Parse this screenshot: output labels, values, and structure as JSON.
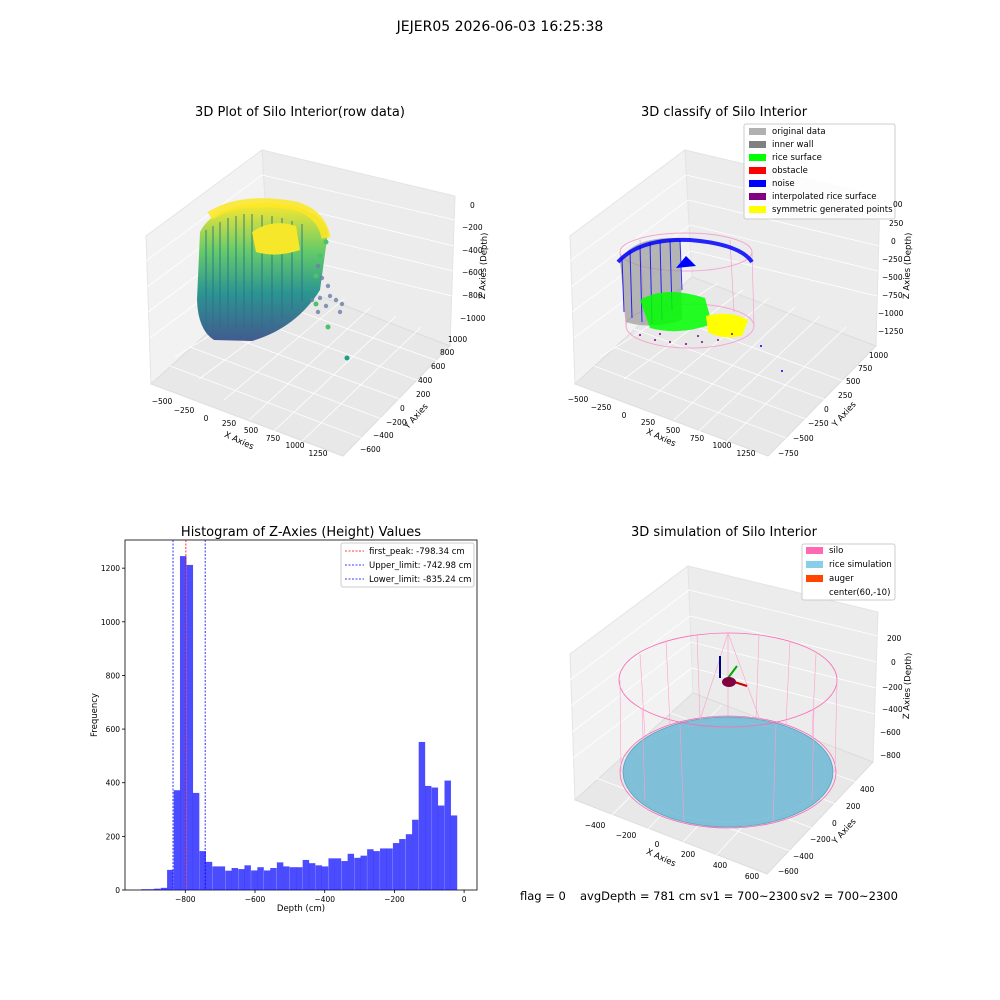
{
  "figure": {
    "suptitle": "JEJER05 2026-06-03 16:25:38",
    "footer": {
      "flag": "flag = 0",
      "avg": "avgDepth = 781 cm",
      "sv1": "sv1 = 700~2300",
      "sv2": "sv2 = 700~2300"
    }
  },
  "chart_data": [
    {
      "type": "scatter",
      "subtype": "3d",
      "title": "3D Plot of Silo Interior(row data)",
      "xlabel": "X Axies",
      "ylabel": "Y Axies",
      "zlabel": "Z Axies (Depth)",
      "x_ticks": [
        "−500",
        "−250",
        "0",
        "250",
        "500",
        "750",
        "1000",
        "1250"
      ],
      "y_ticks": [
        "−600",
        "−400",
        "−200",
        "0",
        "200",
        "400",
        "600",
        "800",
        "1000"
      ],
      "z_ticks": [
        "0",
        "−200",
        "−400",
        "−600",
        "−800",
        "−1000"
      ],
      "colormap": "viridis",
      "grid": true
    },
    {
      "type": "scatter",
      "subtype": "3d",
      "title": "3D classify of Silo Interior",
      "xlabel": "X Axies",
      "ylabel": "Y Axies",
      "zlabel": "Z Axies (Depth)",
      "x_ticks": [
        "−500",
        "−250",
        "0",
        "250",
        "500",
        "750",
        "1000",
        "1250"
      ],
      "y_ticks": [
        "−750",
        "−500",
        "−250",
        "0",
        "250",
        "500",
        "750",
        "1000"
      ],
      "z_ticks": [
        "250",
        "0",
        "−250",
        "−500",
        "−750",
        "−1000",
        "−1250"
      ],
      "z_tick_top": "00",
      "legend_position": "top-right",
      "legend": [
        {
          "label": "original data",
          "color": "#b0b0b0"
        },
        {
          "label": "inner wall",
          "color": "#808080"
        },
        {
          "label": "rice surface",
          "color": "#00ff00"
        },
        {
          "label": "obstacle",
          "color": "#ff0000"
        },
        {
          "label": "noise",
          "color": "#0000ff"
        },
        {
          "label": "interpolated rice surface",
          "color": "#800080"
        },
        {
          "label": "symmetric generated points",
          "color": "#ffff00"
        }
      ],
      "grid": true
    },
    {
      "type": "bar",
      "subtype": "histogram",
      "title": "Histogram of Z-Axies (Height) Values",
      "xlabel": "Depth (cm)",
      "ylabel": "Frequency",
      "x_ticks": [
        "−800",
        "−600",
        "−400",
        "−200",
        "0"
      ],
      "y_ticks": [
        "0",
        "200",
        "400",
        "600",
        "800",
        "1000",
        "1200"
      ],
      "xlim": [
        -973,
        37
      ],
      "ylim": [
        0,
        1305
      ],
      "bar_color": "#0000ff",
      "bin_width": 18.5,
      "bins": [
        {
          "x": -917,
          "count": 3
        },
        {
          "x": -898,
          "count": 3
        },
        {
          "x": -880,
          "count": 5
        },
        {
          "x": -861,
          "count": 8
        },
        {
          "x": -843,
          "count": 75
        },
        {
          "x": -824,
          "count": 372
        },
        {
          "x": -806,
          "count": 1245
        },
        {
          "x": -787,
          "count": 1212
        },
        {
          "x": -769,
          "count": 362
        },
        {
          "x": -750,
          "count": 145
        },
        {
          "x": -732,
          "count": 105
        },
        {
          "x": -713,
          "count": 88
        },
        {
          "x": -695,
          "count": 88
        },
        {
          "x": -676,
          "count": 72
        },
        {
          "x": -658,
          "count": 82
        },
        {
          "x": -639,
          "count": 78
        },
        {
          "x": -621,
          "count": 92
        },
        {
          "x": -602,
          "count": 73
        },
        {
          "x": -584,
          "count": 85
        },
        {
          "x": -565,
          "count": 73
        },
        {
          "x": -547,
          "count": 82
        },
        {
          "x": -528,
          "count": 103
        },
        {
          "x": -510,
          "count": 88
        },
        {
          "x": -491,
          "count": 85
        },
        {
          "x": -473,
          "count": 85
        },
        {
          "x": -454,
          "count": 112
        },
        {
          "x": -436,
          "count": 100
        },
        {
          "x": -417,
          "count": 92
        },
        {
          "x": -399,
          "count": 88
        },
        {
          "x": -380,
          "count": 118
        },
        {
          "x": -362,
          "count": 118
        },
        {
          "x": -343,
          "count": 108
        },
        {
          "x": -325,
          "count": 135
        },
        {
          "x": -306,
          "count": 120
        },
        {
          "x": -288,
          "count": 128
        },
        {
          "x": -269,
          "count": 152
        },
        {
          "x": -251,
          "count": 145
        },
        {
          "x": -232,
          "count": 155
        },
        {
          "x": -214,
          "count": 155
        },
        {
          "x": -195,
          "count": 175
        },
        {
          "x": -177,
          "count": 190
        },
        {
          "x": -158,
          "count": 208
        },
        {
          "x": -140,
          "count": 262
        },
        {
          "x": -121,
          "count": 552
        },
        {
          "x": -103,
          "count": 388
        },
        {
          "x": -84,
          "count": 382
        },
        {
          "x": -66,
          "count": 315
        },
        {
          "x": -47,
          "count": 408
        },
        {
          "x": -29,
          "count": 278
        }
      ],
      "vlines": [
        {
          "label": "first_peak: -798.34 cm",
          "x": -798.34,
          "color": "#ff0000"
        },
        {
          "label": "Upper_limit: -742.98 cm",
          "x": -742.98,
          "color": "#0000ff"
        },
        {
          "label": "Lower_limit: -835.24 cm",
          "x": -835.24,
          "color": "#0000ff"
        }
      ],
      "legend_position": "top-right",
      "grid": false
    },
    {
      "type": "scatter",
      "subtype": "3d",
      "title": "3D simulation of Silo Interior",
      "xlabel": "X Axies",
      "ylabel": "Y Axies",
      "zlabel": "Z Axies (Depth)",
      "x_ticks": [
        "−400",
        "−200",
        "0",
        "200",
        "400",
        "600"
      ],
      "y_ticks": [
        "−600",
        "−400",
        "−200",
        "0",
        "200",
        "400"
      ],
      "z_ticks": [
        "200",
        "0",
        "−200",
        "−400",
        "−600",
        "−800"
      ],
      "legend_position": "top-right",
      "legend": [
        {
          "label": "silo",
          "color": "#ff69b4"
        },
        {
          "label": "rice simulation",
          "color": "#87ceeb"
        },
        {
          "label": "auger",
          "color": "#ff4500"
        },
        {
          "label": "center(60,-10)",
          "color": "none"
        }
      ],
      "grid": true
    }
  ]
}
